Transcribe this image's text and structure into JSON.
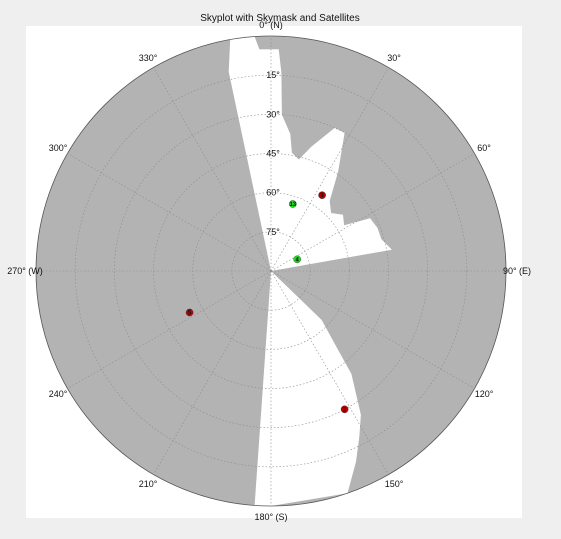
{
  "chart_data": {
    "type": "polar-skyplot",
    "title": "Skyplot with Skymask and Satellites",
    "azimuth_labels": [
      {
        "az": 0,
        "text": "0° (N)"
      },
      {
        "az": 30,
        "text": "30°"
      },
      {
        "az": 60,
        "text": "60°"
      },
      {
        "az": 90,
        "text": "90° (E)"
      },
      {
        "az": 120,
        "text": "120°"
      },
      {
        "az": 150,
        "text": "150°"
      },
      {
        "az": 180,
        "text": "180° (S)"
      },
      {
        "az": 210,
        "text": "210°"
      },
      {
        "az": 240,
        "text": "240°"
      },
      {
        "az": 270,
        "text": "270° (W)"
      },
      {
        "az": 300,
        "text": "300°"
      },
      {
        "az": 330,
        "text": "330°"
      }
    ],
    "elevation_labels": [
      {
        "el": 15,
        "text": "15°"
      },
      {
        "el": 30,
        "text": "30°"
      },
      {
        "el": 45,
        "text": "45°"
      },
      {
        "el": 60,
        "text": "60°"
      },
      {
        "el": 75,
        "text": "75°"
      }
    ],
    "elevation_range": [
      0,
      90
    ],
    "grid": true,
    "skymask_open": [
      {
        "az": 350,
        "el": 0
      },
      {
        "az": 356,
        "el": 0
      },
      {
        "az": 357,
        "el": 5
      },
      {
        "az": 2,
        "el": 5
      },
      {
        "az": 3,
        "el": 14
      },
      {
        "az": 4,
        "el": 30
      },
      {
        "az": 8,
        "el": 37
      },
      {
        "az": 10,
        "el": 44
      },
      {
        "az": 14,
        "el": 46
      },
      {
        "az": 18,
        "el": 40
      },
      {
        "az": 24,
        "el": 30
      },
      {
        "az": 28,
        "el": 30
      },
      {
        "az": 34,
        "el": 44
      },
      {
        "az": 40,
        "el": 55
      },
      {
        "az": 46,
        "el": 58
      },
      {
        "az": 52,
        "el": 55
      },
      {
        "az": 58,
        "el": 57
      },
      {
        "az": 62,
        "el": 47
      },
      {
        "az": 68,
        "el": 46
      },
      {
        "az": 74,
        "el": 46
      },
      {
        "az": 80,
        "el": 43
      },
      {
        "az": 84,
        "el": 90
      },
      {
        "az": 130,
        "el": 90
      },
      {
        "az": 134,
        "el": 63
      },
      {
        "az": 140,
        "el": 49
      },
      {
        "az": 142,
        "el": 40
      },
      {
        "az": 148,
        "el": 25
      },
      {
        "az": 152,
        "el": 18
      },
      {
        "az": 156,
        "el": 10
      },
      {
        "az": 161,
        "el": 0
      },
      {
        "az": 180,
        "el": 0
      },
      {
        "az": 184,
        "el": 0
      },
      {
        "az": 188,
        "el": 90
      },
      {
        "az": 344,
        "el": 90
      },
      {
        "az": 348,
        "el": 12
      }
    ],
    "satellites": [
      {
        "id": "13",
        "az": 18,
        "el": 63,
        "visible": true
      },
      {
        "id": "8",
        "az": 34,
        "el": 55,
        "visible": false
      },
      {
        "id": "4",
        "az": 66,
        "el": 79,
        "visible": true
      },
      {
        "id": "2",
        "az": 152,
        "el": 30,
        "visible": false
      },
      {
        "id": "5",
        "az": 243,
        "el": 55,
        "visible": false
      }
    ],
    "colors": {
      "background": "#efefef",
      "axes_background": "#ffffff",
      "mask": "#b3b3b3",
      "visible_satellite": "#1fdd1f",
      "blocked_satellite": "#c00000",
      "grid": "#8c8c8c"
    }
  }
}
